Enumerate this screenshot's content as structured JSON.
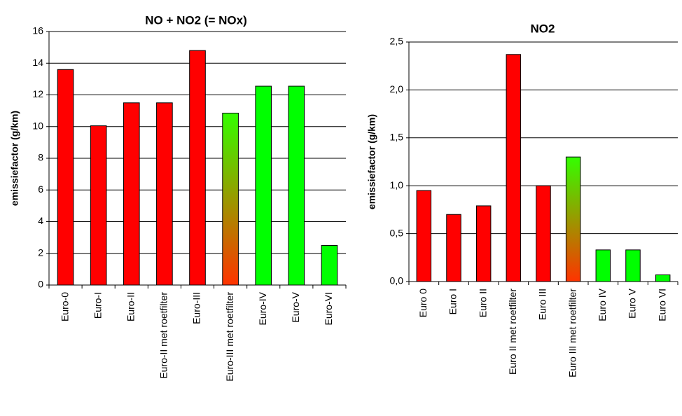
{
  "chart_data": [
    {
      "type": "bar",
      "title": "NO + NO2 (= NOx)",
      "y_label": "emissiefactor (g/km)",
      "categories": [
        "Euro-0",
        "Euro-I",
        "Euro-II",
        "Euro-II met roetfilter",
        "Euro-III",
        "Euro-III met roetfilter",
        "Euro-IV",
        "Euro-V",
        "Euro-VI"
      ],
      "values": [
        13.6,
        10.05,
        11.5,
        11.5,
        14.8,
        10.85,
        12.55,
        12.55,
        2.5
      ],
      "colors": [
        "#ff0000",
        "#ff0000",
        "#ff0000",
        "#ff0000",
        "#ff0000",
        [
          "#33ff00",
          "#ff3300"
        ],
        "#00ff00",
        "#00ff00",
        "#00ff00"
      ],
      "ylim": [
        0,
        16
      ],
      "yticks": [
        0,
        2,
        4,
        6,
        8,
        10,
        12,
        14,
        16
      ],
      "grid": true
    },
    {
      "type": "bar",
      "title": "NO2",
      "y_label": "emissiefactor (g/km)",
      "categories": [
        "Euro 0",
        "Euro I",
        "Euro II",
        "Euro II met roetfilter",
        "Euro III",
        "Euro III met roetfilter",
        "Euro IV",
        "Euro V",
        "Euro VI"
      ],
      "values": [
        0.95,
        0.7,
        0.79,
        2.37,
        1.0,
        1.3,
        0.33,
        0.33,
        0.07
      ],
      "colors": [
        "#ff0000",
        "#ff0000",
        "#ff0000",
        "#ff0000",
        "#ff0000",
        [
          "#33ff00",
          "#ff3300"
        ],
        "#00ff00",
        "#00ff00",
        "#00ff00"
      ],
      "ylim": [
        0,
        2.5
      ],
      "yticks": [
        {
          "value": 0,
          "label": "0,0"
        },
        {
          "value": 0.5,
          "label": "0,5"
        },
        {
          "value": 1,
          "label": "1,0"
        },
        {
          "value": 1.5,
          "label": "1,5"
        },
        {
          "value": 2,
          "label": "2,0"
        },
        {
          "value": 2.5,
          "label": "2,5"
        }
      ],
      "grid": true
    }
  ]
}
